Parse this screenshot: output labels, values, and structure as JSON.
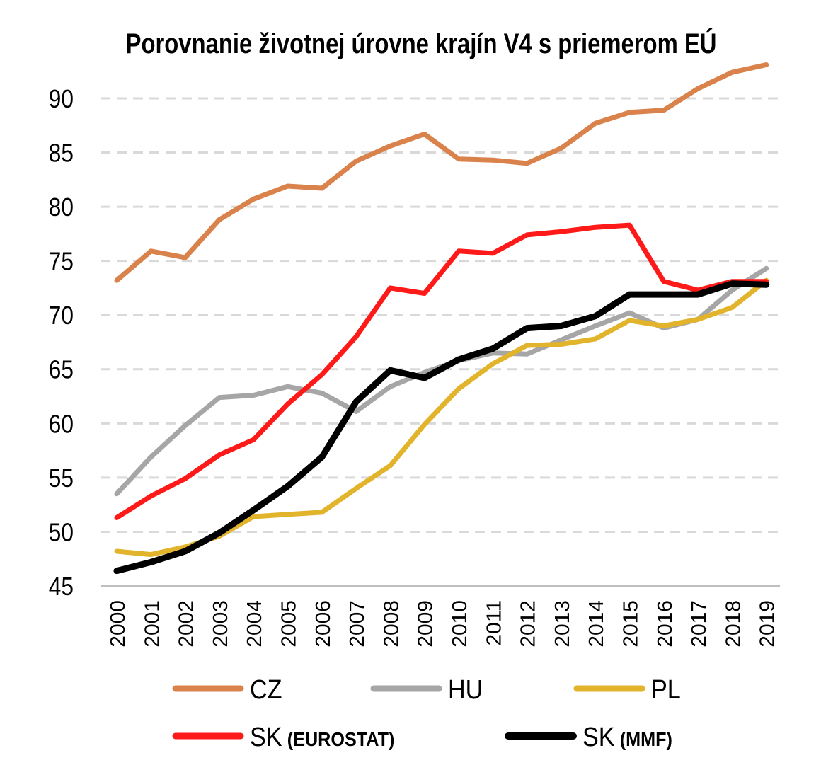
{
  "chart_data": {
    "type": "line",
    "title": "Porovnanie životnej úrovne krajín V4 s priemerom EÚ",
    "xlabel": "",
    "ylabel": "",
    "ylim": [
      45,
      93
    ],
    "yticks": [
      45,
      50,
      55,
      60,
      65,
      70,
      75,
      80,
      85,
      90
    ],
    "grid": true,
    "legend_position": "bottom",
    "x": [
      "2000",
      "2001",
      "2002",
      "2003",
      "2004",
      "2005",
      "2006",
      "2007",
      "2008",
      "2009",
      "2010",
      "2011",
      "2012",
      "2013",
      "2014",
      "2015",
      "2016",
      "2017",
      "2018",
      "2019"
    ],
    "series": [
      {
        "name": "CZ",
        "color": "#D9824B",
        "values": [
          73.2,
          75.9,
          75.3,
          78.8,
          80.7,
          81.9,
          81.7,
          84.2,
          85.6,
          86.7,
          84.4,
          84.3,
          84.0,
          85.4,
          87.7,
          88.7,
          88.9,
          90.9,
          92.4,
          93.1
        ]
      },
      {
        "name": "HU",
        "color": "#A6A6A6",
        "values": [
          53.5,
          56.9,
          59.8,
          62.4,
          62.6,
          63.4,
          62.8,
          61.1,
          63.4,
          64.7,
          65.8,
          66.5,
          66.4,
          67.7,
          69.0,
          70.2,
          68.8,
          69.6,
          72.3,
          74.3
        ]
      },
      {
        "name": "PL",
        "color": "#E2B42B",
        "values": [
          48.2,
          47.9,
          48.6,
          49.6,
          51.4,
          51.6,
          51.8,
          54.0,
          56.1,
          59.9,
          63.2,
          65.5,
          67.2,
          67.3,
          67.8,
          69.5,
          69.0,
          69.6,
          70.7,
          73.2
        ]
      },
      {
        "name": "SK",
        "name_suffix": "(EUROSTAT)",
        "color": "#FF1A1A",
        "values": [
          51.3,
          53.3,
          54.9,
          57.1,
          58.5,
          61.8,
          64.5,
          68.0,
          72.5,
          72.0,
          75.9,
          75.7,
          77.4,
          77.7,
          78.1,
          78.3,
          73.1,
          72.3,
          73.1,
          73.1
        ]
      },
      {
        "name": "SK",
        "name_suffix": "(MMF)",
        "color": "#000000",
        "values": [
          46.4,
          47.2,
          48.2,
          49.9,
          52.0,
          54.2,
          56.9,
          62.0,
          64.9,
          64.2,
          65.9,
          66.9,
          68.8,
          69.0,
          69.9,
          71.9,
          71.9,
          71.9,
          72.9,
          72.8
        ]
      }
    ]
  }
}
